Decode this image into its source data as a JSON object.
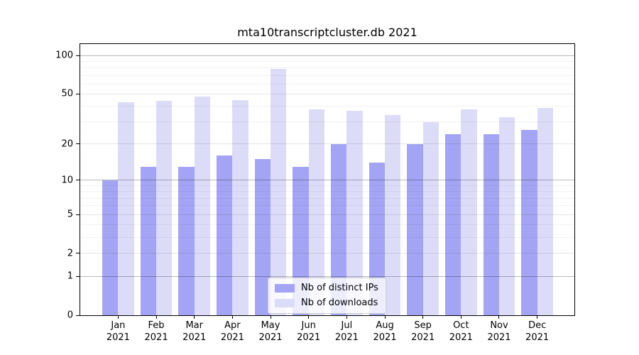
{
  "chart_data": {
    "type": "bar",
    "title": "mta10transcriptcluster.db 2021",
    "categories": [
      "Jan",
      "Feb",
      "Mar",
      "Apr",
      "May",
      "Jun",
      "Jul",
      "Aug",
      "Sep",
      "Oct",
      "Nov",
      "Dec"
    ],
    "category_year": "2021",
    "series": [
      {
        "name": "Nb of distinct IPs",
        "color": "#a4a4f4",
        "values": [
          10,
          13,
          13,
          16,
          15,
          13,
          20,
          14,
          20,
          24,
          24,
          26
        ]
      },
      {
        "name": "Nb of downloads",
        "color": "#dcdcf8",
        "values": [
          43,
          44,
          48,
          45,
          79,
          38,
          37,
          34,
          30,
          38,
          33,
          39
        ]
      }
    ],
    "y_scale": "log1p",
    "y_ticks": [
      0,
      1,
      2,
      5,
      10,
      20,
      50,
      100
    ],
    "y_minor_ticks": [
      3,
      4,
      6,
      7,
      8,
      9,
      30,
      40,
      60,
      70,
      80,
      90
    ],
    "ylim": [
      0,
      100
    ],
    "xlabel": "",
    "ylabel": "",
    "grid": "on",
    "legend_position": "bottom-center",
    "axis_color": "#000000"
  }
}
